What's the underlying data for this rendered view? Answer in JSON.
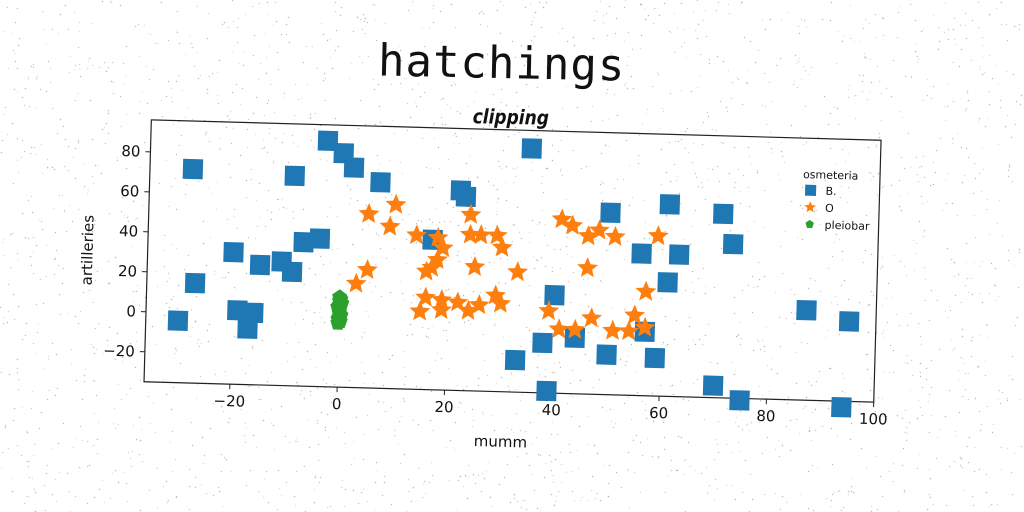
{
  "title": "hatchings",
  "subtitle": "clipping",
  "chart_data": {
    "type": "scatter",
    "xlabel": "mumm",
    "ylabel": "artilleries",
    "xlim": [
      -36,
      100
    ],
    "ylim": [
      -35,
      96
    ],
    "xticks": [
      -20,
      0,
      20,
      40,
      60,
      80,
      100
    ],
    "yticks": [
      -20,
      0,
      20,
      40,
      60,
      80
    ],
    "grid": false,
    "legend": {
      "title": "osmeteria",
      "placement": "top-right"
    },
    "series": [
      {
        "name": "B.",
        "marker": "square",
        "color": "#1f77b4",
        "points": [
          [
            -3,
            88
          ],
          [
            0,
            82
          ],
          [
            2,
            75
          ],
          [
            7,
            68
          ],
          [
            -28,
            72
          ],
          [
            -9,
            70
          ],
          [
            -20,
            31
          ],
          [
            -11,
            27
          ],
          [
            -15,
            25
          ],
          [
            -9,
            22
          ],
          [
            -7,
            37
          ],
          [
            -4,
            39
          ],
          [
            -27,
            15
          ],
          [
            -30,
            -4
          ],
          [
            -19,
            2
          ],
          [
            -16,
            1
          ],
          [
            -17,
            -7
          ],
          [
            17,
            40
          ],
          [
            22,
            65
          ],
          [
            23,
            62
          ],
          [
            35,
            87
          ],
          [
            40,
            14
          ],
          [
            38,
            -10
          ],
          [
            33,
            -19
          ],
          [
            39,
            -34
          ],
          [
            44,
            -7
          ],
          [
            50,
            56
          ],
          [
            50,
            -15
          ],
          [
            56,
            36
          ],
          [
            57,
            -3
          ],
          [
            59,
            -16
          ],
          [
            61,
            61
          ],
          [
            61,
            22
          ],
          [
            63,
            36
          ],
          [
            71,
            57
          ],
          [
            73,
            42
          ],
          [
            70,
            -29
          ],
          [
            75,
            -36
          ],
          [
            87,
            10
          ],
          [
            95,
            5
          ],
          [
            94,
            -38
          ]
        ]
      },
      {
        "name": "O",
        "marker": "star",
        "color": "#ff7f0e",
        "points": [
          [
            5,
            52
          ],
          [
            10,
            57
          ],
          [
            9,
            46
          ],
          [
            14,
            42
          ],
          [
            18,
            41
          ],
          [
            18,
            30
          ],
          [
            19,
            36
          ],
          [
            16,
            24
          ],
          [
            17,
            26
          ],
          [
            3,
            17
          ],
          [
            5,
            24
          ],
          [
            16,
            11
          ],
          [
            15,
            4
          ],
          [
            19,
            10
          ],
          [
            19,
            5
          ],
          [
            24,
            53
          ],
          [
            24,
            43
          ],
          [
            26,
            43
          ],
          [
            29,
            43
          ],
          [
            30,
            37
          ],
          [
            25,
            27
          ],
          [
            22,
            9
          ],
          [
            24,
            5
          ],
          [
            26,
            8
          ],
          [
            29,
            13
          ],
          [
            30,
            9
          ],
          [
            33,
            25
          ],
          [
            41,
            52
          ],
          [
            43,
            49
          ],
          [
            46,
            44
          ],
          [
            48,
            47
          ],
          [
            51,
            44
          ],
          [
            46,
            28
          ],
          [
            39,
            6
          ],
          [
            41,
            -3
          ],
          [
            44,
            -3
          ],
          [
            47,
            3
          ],
          [
            51,
            -3
          ],
          [
            54,
            -3
          ],
          [
            55,
            5
          ],
          [
            57,
            -1
          ],
          [
            57,
            17
          ],
          [
            59,
            45
          ]
        ]
      },
      {
        "name": "pleiobar",
        "marker": "pentagon",
        "color": "#2ca02c",
        "points": [
          [
            0,
            10
          ],
          [
            0,
            8
          ],
          [
            0,
            6
          ],
          [
            0,
            4
          ],
          [
            0,
            2
          ],
          [
            0,
            0
          ],
          [
            0.2,
            -2
          ],
          [
            -0.2,
            -3
          ],
          [
            0.4,
            7
          ],
          [
            -0.3,
            5
          ],
          [
            0.3,
            1
          ],
          [
            -0.2,
            -1
          ],
          [
            0.2,
            9
          ],
          [
            0,
            3
          ]
        ]
      }
    ]
  }
}
